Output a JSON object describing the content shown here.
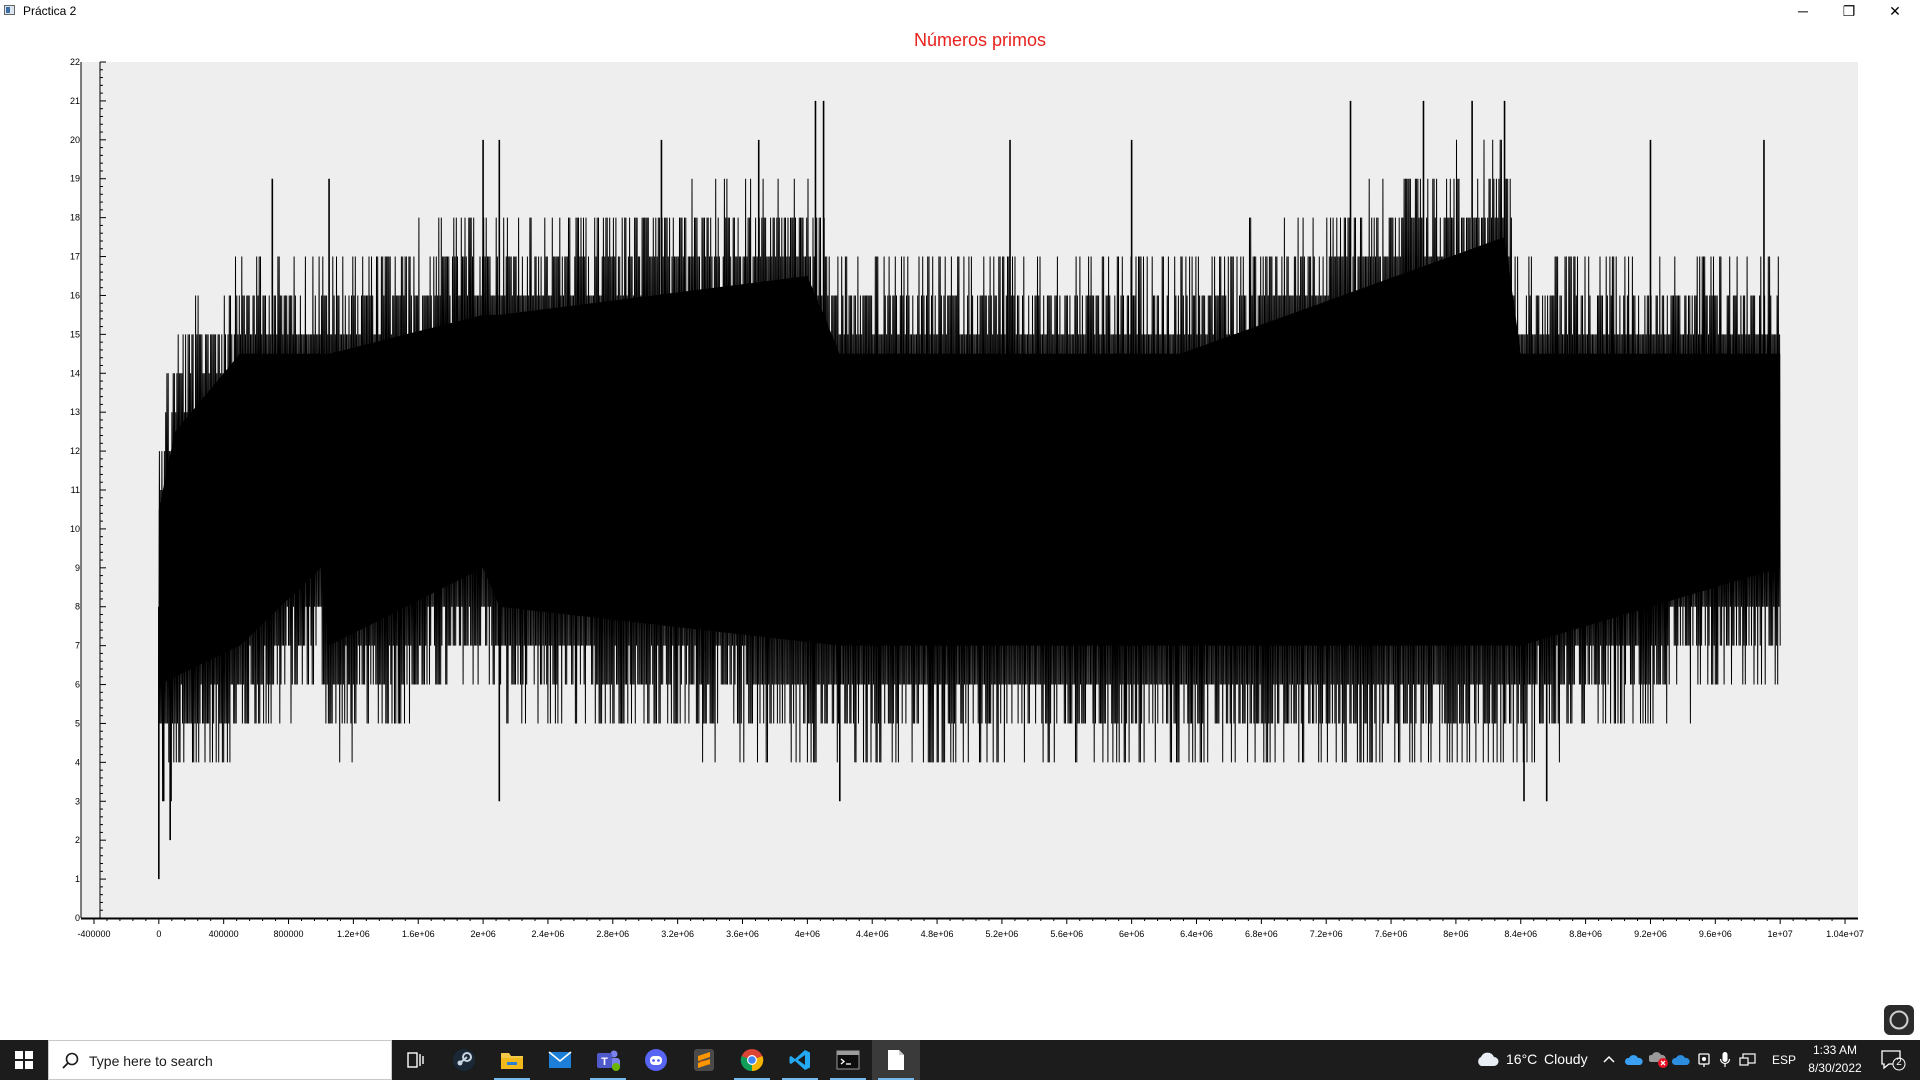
{
  "window": {
    "title": "Práctica 2",
    "minimize_glyph": "─",
    "restore_glyph": "❐",
    "close_glyph": "✕"
  },
  "colors": {
    "title": "#e8211d",
    "plot_bg": "#eeeeee",
    "line": "#000000",
    "taskbar": "#1c1c1c"
  },
  "chart_data": {
    "type": "line",
    "title": "Números primos",
    "xlabel": "",
    "ylabel": "",
    "xlim": [
      -480000,
      10480000
    ],
    "ylim": [
      0,
      22
    ],
    "xticks": [
      "-400000",
      "0",
      "400000",
      "800000",
      "1.2e+06",
      "1.6e+06",
      "2e+06",
      "2.4e+06",
      "2.8e+06",
      "3.2e+06",
      "3.6e+06",
      "4e+06",
      "4.4e+06",
      "4.8e+06",
      "5.2e+06",
      "5.6e+06",
      "6e+06",
      "6.4e+06",
      "6.8e+06",
      "7.2e+06",
      "7.6e+06",
      "8e+06",
      "8.4e+06",
      "8.8e+06",
      "9.2e+06",
      "9.6e+06",
      "1e+07",
      "1.04e+07"
    ],
    "yticks": [
      "0",
      "1",
      "2",
      "3",
      "4",
      "5",
      "6",
      "7",
      "8",
      "9",
      "10",
      "11",
      "12",
      "13",
      "14",
      "15",
      "16",
      "17",
      "18",
      "19",
      "20",
      "21",
      "22"
    ],
    "x_range": [
      0,
      10000000
    ],
    "band_min": [
      {
        "x": 0,
        "y": 3
      },
      {
        "x": 500000,
        "y": 4
      },
      {
        "x": 1000000,
        "y": 6
      },
      {
        "x": 1050000,
        "y": 4
      },
      {
        "x": 2000000,
        "y": 6
      },
      {
        "x": 2100000,
        "y": 5
      },
      {
        "x": 4200000,
        "y": 4
      },
      {
        "x": 6300000,
        "y": 4
      },
      {
        "x": 8400000,
        "y": 4
      },
      {
        "x": 10000000,
        "y": 6
      }
    ],
    "band_max": [
      {
        "x": 0,
        "y": 13
      },
      {
        "x": 100000,
        "y": 15
      },
      {
        "x": 500000,
        "y": 17
      },
      {
        "x": 1050000,
        "y": 17
      },
      {
        "x": 2000000,
        "y": 18
      },
      {
        "x": 2100000,
        "y": 18
      },
      {
        "x": 4000000,
        "y": 19
      },
      {
        "x": 4200000,
        "y": 17
      },
      {
        "x": 6300000,
        "y": 17
      },
      {
        "x": 8300000,
        "y": 20
      },
      {
        "x": 8400000,
        "y": 17
      },
      {
        "x": 10000000,
        "y": 17
      }
    ],
    "peaks": [
      {
        "x": 0,
        "y": 1
      },
      {
        "x": 30000,
        "y": 3
      },
      {
        "x": 70000,
        "y": 2
      },
      {
        "x": 2100000,
        "y": 3
      },
      {
        "x": 4200000,
        "y": 3
      },
      {
        "x": 8420000,
        "y": 3
      },
      {
        "x": 8560000,
        "y": 3
      },
      {
        "x": 700000,
        "y": 19
      },
      {
        "x": 1050000,
        "y": 19
      },
      {
        "x": 2000000,
        "y": 20
      },
      {
        "x": 2100000,
        "y": 20
      },
      {
        "x": 3100000,
        "y": 20
      },
      {
        "x": 3700000,
        "y": 20
      },
      {
        "x": 4050000,
        "y": 21
      },
      {
        "x": 4100000,
        "y": 21
      },
      {
        "x": 5250000,
        "y": 20
      },
      {
        "x": 6000000,
        "y": 20
      },
      {
        "x": 7350000,
        "y": 21
      },
      {
        "x": 7800000,
        "y": 21
      },
      {
        "x": 8100000,
        "y": 21
      },
      {
        "x": 8300000,
        "y": 21
      },
      {
        "x": 9200000,
        "y": 20
      },
      {
        "x": 9900000,
        "y": 20
      }
    ]
  },
  "taskbar": {
    "search_placeholder": "Type here to search",
    "apps": [
      {
        "name": "task-view"
      },
      {
        "name": "steam"
      },
      {
        "name": "file-explorer"
      },
      {
        "name": "mail"
      },
      {
        "name": "teams"
      },
      {
        "name": "discord"
      },
      {
        "name": "sublime-text"
      },
      {
        "name": "chrome"
      },
      {
        "name": "vs-code"
      },
      {
        "name": "terminal"
      },
      {
        "name": "practica-window"
      }
    ],
    "weather_temp": "16°C",
    "weather_desc": "Cloudy",
    "language": "ESP",
    "time": "1:33 AM",
    "date": "8/30/2022",
    "notification_count": "2"
  }
}
